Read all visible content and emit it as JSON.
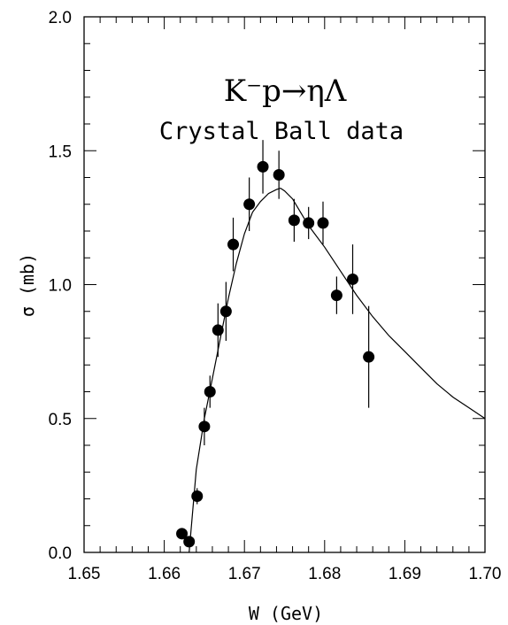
{
  "chart_data": {
    "type": "scatter",
    "title": "K⁻p→ηΛ",
    "subtitle": "Crystal Ball data",
    "xlabel": "W (GeV)",
    "ylabel": "σ (mb)",
    "xlim": [
      1.65,
      1.7
    ],
    "ylim": [
      0.0,
      2.0
    ],
    "x_ticks": [
      "1.65",
      "1.66",
      "1.67",
      "1.68",
      "1.69",
      "1.70"
    ],
    "y_ticks": [
      "0.0",
      "0.5",
      "1.0",
      "1.5",
      "2.0"
    ],
    "grid": false,
    "series": [
      {
        "kind": "points-with-errors",
        "x": [
          1.6622,
          1.6631,
          1.6641,
          1.665,
          1.6657,
          1.6667,
          1.6677,
          1.6686,
          1.6706,
          1.6723,
          1.6743,
          1.6762,
          1.678,
          1.6798,
          1.6815,
          1.6835,
          1.6855
        ],
        "y": [
          0.07,
          0.04,
          0.21,
          0.47,
          0.6,
          0.83,
          0.9,
          1.15,
          1.3,
          1.44,
          1.41,
          1.24,
          1.23,
          1.23,
          0.96,
          1.02,
          0.73
        ],
        "err": [
          0.02,
          0.02,
          0.03,
          0.07,
          0.06,
          0.1,
          0.11,
          0.1,
          0.1,
          0.1,
          0.09,
          0.08,
          0.06,
          0.08,
          0.07,
          0.13,
          0.19
        ]
      },
      {
        "kind": "fit-curve",
        "x": [
          1.6631,
          1.664,
          1.665,
          1.666,
          1.667,
          1.668,
          1.669,
          1.67,
          1.671,
          1.672,
          1.673,
          1.674,
          1.6745,
          1.675,
          1.676,
          1.677,
          1.678,
          1.68,
          1.682,
          1.684,
          1.686,
          1.688,
          1.69,
          1.692,
          1.694,
          1.696,
          1.698,
          1.7
        ],
        "y": [
          0.0,
          0.31,
          0.5,
          0.65,
          0.8,
          0.95,
          1.08,
          1.19,
          1.27,
          1.31,
          1.34,
          1.355,
          1.36,
          1.35,
          1.32,
          1.27,
          1.22,
          1.14,
          1.05,
          0.96,
          0.88,
          0.81,
          0.75,
          0.69,
          0.63,
          0.58,
          0.54,
          0.5
        ]
      }
    ]
  }
}
